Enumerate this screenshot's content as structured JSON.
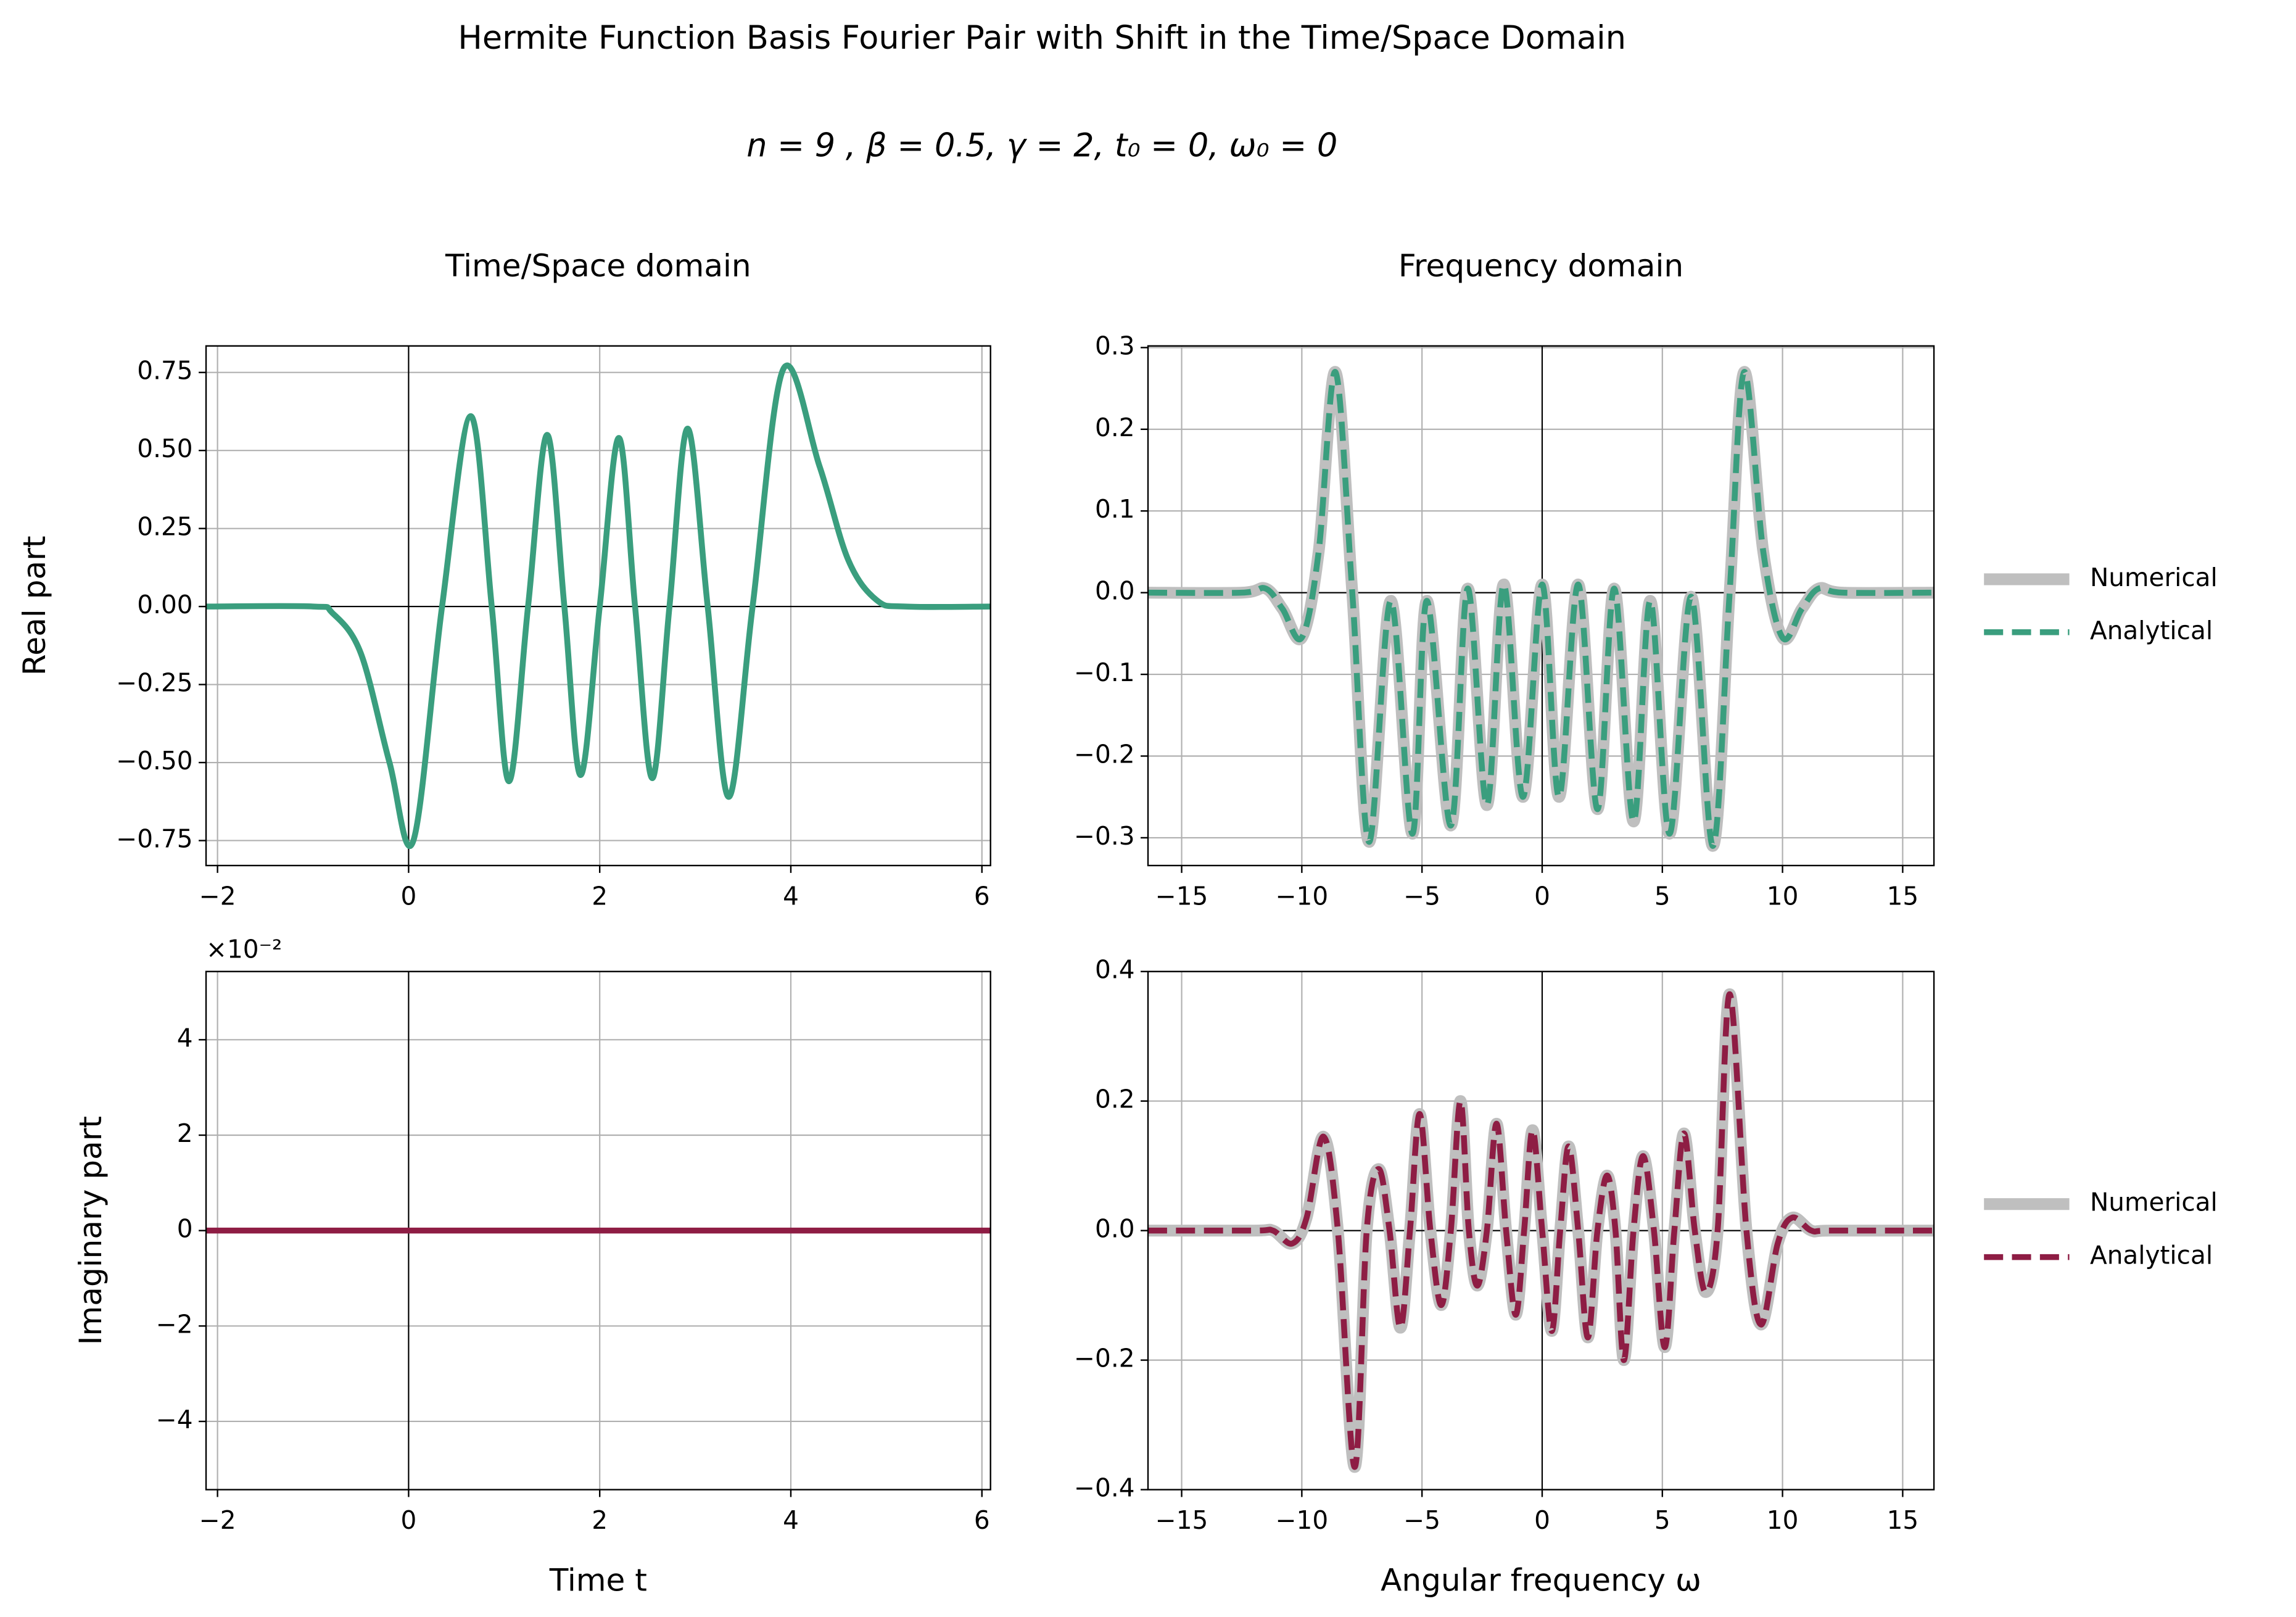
{
  "title": "Hermite Function Basis Fourier Pair with Shift in the Time/Space Domain",
  "subtitle": "n = 9 , β = 0.5, γ = 2, t₀ = 0, ω₀ = 0",
  "chart_data": [
    {
      "type": "line",
      "title": "Time/Space domain",
      "ylabel": "Real part",
      "grid": true,
      "xlim": [
        -2.12,
        6.09
      ],
      "ylim": [
        -0.83,
        0.835
      ],
      "xticks": [
        {
          "value": -2,
          "label": "−2"
        },
        0,
        2,
        4,
        6
      ],
      "yticks": [
        {
          "value": -0.75,
          "label": "−0.75"
        },
        {
          "value": -0.5,
          "label": "−0.50"
        },
        {
          "value": -0.25,
          "label": "−0.25"
        },
        {
          "value": 0,
          "label": "0.00"
        },
        0.25,
        {
          "value": 0.5,
          "label": "0.50"
        },
        0.75
      ],
      "x": [
        -2.12,
        -1.0,
        -0.8,
        -0.5,
        -0.2,
        0.05,
        0.35,
        0.65,
        0.87,
        1.05,
        1.25,
        1.45,
        1.63,
        1.8,
        2.0,
        2.2,
        2.37,
        2.55,
        2.73,
        2.92,
        3.13,
        3.35,
        3.6,
        3.92,
        4.3,
        4.6,
        4.9,
        5.2,
        6.09
      ],
      "series": [
        {
          "color": "#3a9e7e",
          "linestyle": "solid",
          "values": [
            0,
            0,
            -0.02,
            -0.15,
            -0.5,
            -0.75,
            0,
            0.61,
            0,
            -0.56,
            0,
            0.55,
            0,
            -0.54,
            0,
            0.54,
            0,
            -0.55,
            0,
            0.57,
            0,
            -0.61,
            0,
            0.76,
            0.45,
            0.15,
            0.02,
            0,
            0
          ]
        }
      ]
    },
    {
      "type": "line",
      "title": "Frequency domain",
      "grid": true,
      "legend": "right",
      "xlim": [
        -16.4,
        16.3
      ],
      "ylim": [
        -0.334,
        0.302
      ],
      "xticks": [
        {
          "value": -15,
          "label": "−15"
        },
        {
          "value": -10,
          "label": "−10"
        },
        {
          "value": -5,
          "label": "−5"
        },
        0,
        5,
        10,
        15
      ],
      "yticks": [
        {
          "value": -0.3,
          "label": "−0.3"
        },
        {
          "value": -0.2,
          "label": "−0.2"
        },
        {
          "value": -0.1,
          "label": "−0.1"
        },
        {
          "value": 0,
          "label": "0.0"
        },
        0.1,
        0.2,
        0.3
      ],
      "x": [
        -16.4,
        -12.5,
        -11.5,
        -10.8,
        -10,
        -9.3,
        -8.6,
        -7.9,
        -7.2,
        -6.3,
        -5.4,
        -4.8,
        -3.8,
        -3.1,
        -2.3,
        -1.6,
        -0.8,
        0,
        0.7,
        1.5,
        2.3,
        3.0,
        3.8,
        4.5,
        5.3,
        6.2,
        7.1,
        7.8,
        8.4,
        9.2,
        10,
        10.8,
        11.5,
        12.5,
        16.3
      ],
      "series": [
        {
          "name": "Numerical",
          "color": "#bfbfbf",
          "linestyle": "solid",
          "values": [
            0,
            0,
            0.005,
            -0.02,
            -0.055,
            0.05,
            0.27,
            0,
            -0.305,
            -0.01,
            -0.295,
            -0.01,
            -0.285,
            0.005,
            -0.26,
            0.01,
            -0.25,
            0.01,
            -0.25,
            0.01,
            -0.265,
            0.005,
            -0.28,
            -0.01,
            -0.295,
            -0.005,
            -0.31,
            0,
            0.27,
            0.05,
            -0.055,
            -0.02,
            0.005,
            0,
            0
          ]
        },
        {
          "name": "Analytical",
          "color": "#3a9e7e",
          "linestyle": "dashed",
          "values": [
            0,
            0,
            0.005,
            -0.02,
            -0.055,
            0.05,
            0.27,
            0,
            -0.305,
            -0.01,
            -0.295,
            -0.01,
            -0.285,
            0.005,
            -0.26,
            0.01,
            -0.25,
            0.01,
            -0.25,
            0.01,
            -0.265,
            0.005,
            -0.28,
            -0.01,
            -0.295,
            -0.005,
            -0.31,
            0,
            0.27,
            0.05,
            -0.055,
            -0.02,
            0.005,
            0,
            0
          ]
        }
      ]
    },
    {
      "type": "line",
      "ylabel": "Imaginary part",
      "xlabel": "Time t",
      "y_offset_label": "×10⁻²",
      "grid": true,
      "xlim": [
        -2.12,
        6.09
      ],
      "ylim": [
        -5.43,
        5.43
      ],
      "xticks": [
        {
          "value": -2,
          "label": "−2"
        },
        0,
        2,
        4,
        6
      ],
      "yticks": [
        {
          "value": -4,
          "label": "−4"
        },
        {
          "value": -2,
          "label": "−2"
        },
        0,
        2,
        4
      ],
      "x": [
        -2.12,
        6.09
      ],
      "series": [
        {
          "color": "#8e1d44",
          "linestyle": "solid",
          "values": [
            0,
            0
          ]
        }
      ]
    },
    {
      "type": "line",
      "xlabel": "Angular frequency ω",
      "grid": true,
      "legend": "right",
      "xlim": [
        -16.4,
        16.3
      ],
      "ylim": [
        -0.4,
        0.4
      ],
      "xticks": [
        {
          "value": -15,
          "label": "−15"
        },
        {
          "value": -10,
          "label": "−10"
        },
        {
          "value": -5,
          "label": "−5"
        },
        0,
        5,
        10,
        15
      ],
      "yticks": [
        {
          "value": -0.4,
          "label": "−0.4"
        },
        {
          "value": -0.2,
          "label": "−0.2"
        },
        {
          "value": 0,
          "label": "0.0"
        },
        0.2,
        0.4
      ],
      "x": [
        -16.4,
        -12,
        -11.2,
        -10.4,
        -9.8,
        -9.1,
        -8.5,
        -7.8,
        -7.3,
        -6.8,
        -6.35,
        -5.9,
        -5.5,
        -5.1,
        -4.65,
        -4.2,
        -3.8,
        -3.4,
        -3.05,
        -2.7,
        -2.3,
        -1.9,
        -1.5,
        -1.1,
        -0.75,
        -0.4,
        0,
        0.4,
        0.75,
        1.1,
        1.5,
        1.9,
        2.3,
        2.7,
        3.05,
        3.4,
        3.8,
        4.2,
        4.65,
        5.1,
        5.5,
        5.9,
        6.35,
        6.8,
        7.3,
        7.8,
        8.5,
        9.1,
        9.8,
        10.4,
        11.2,
        12,
        16.3
      ],
      "series": [
        {
          "name": "Numerical",
          "color": "#bfbfbf",
          "linestyle": "solid",
          "values": [
            0,
            0,
            0,
            -0.02,
            0.02,
            0.145,
            0,
            -0.365,
            0,
            0.095,
            0,
            -0.15,
            0,
            0.18,
            0,
            -0.115,
            0,
            0.2,
            0,
            -0.085,
            0,
            0.165,
            0,
            -0.13,
            0,
            0.155,
            0,
            -0.155,
            0,
            0.13,
            0,
            -0.165,
            0,
            0.085,
            0,
            -0.2,
            0,
            0.115,
            0,
            -0.18,
            0,
            0.15,
            0,
            -0.095,
            0,
            0.365,
            0,
            -0.145,
            -0.02,
            0.02,
            0,
            0,
            0
          ]
        },
        {
          "name": "Analytical",
          "color": "#8e1d44",
          "linestyle": "dashed",
          "values": [
            0,
            0,
            0,
            -0.02,
            0.02,
            0.145,
            0,
            -0.365,
            0,
            0.095,
            0,
            -0.15,
            0,
            0.18,
            0,
            -0.115,
            0,
            0.2,
            0,
            -0.085,
            0,
            0.165,
            0,
            -0.13,
            0,
            0.155,
            0,
            -0.155,
            0,
            0.13,
            0,
            -0.165,
            0,
            0.085,
            0,
            -0.2,
            0,
            0.115,
            0,
            -0.18,
            0,
            0.15,
            0,
            -0.095,
            0,
            0.365,
            0,
            -0.145,
            -0.02,
            0.02,
            0,
            0,
            0
          ]
        }
      ]
    }
  ]
}
